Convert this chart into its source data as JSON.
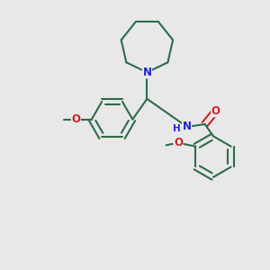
{
  "bg_color": "#e8e8e8",
  "bond_color": "#2d6b4a",
  "n_color": "#2222cc",
  "o_color": "#cc2222",
  "lw": 1.5,
  "fs": 8.5,
  "xlim": [
    0,
    10
  ],
  "ylim": [
    -1,
    10
  ]
}
